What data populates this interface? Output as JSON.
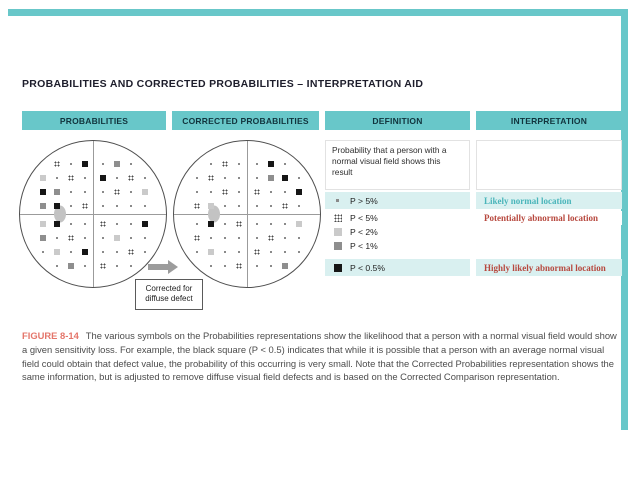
{
  "page": {
    "title": "PROBABILITIES AND CORRECTED PROBABILITIES – INTERPRETATION AID"
  },
  "colors": {
    "accent_teal": "#68c7c9",
    "row_highlight": "#d9f0f0",
    "normal_location_text": "#4ab5ba",
    "abnormal_location_text": "#b7483e",
    "figure_label": "#e4756a"
  },
  "columns": {
    "probabilities": "PROBABILITIES",
    "corrected": "CORRECTED PROBABILITIES",
    "definition": "DEFINITION",
    "interpretation": "INTERPRETATION"
  },
  "plots": {
    "corrected_note": "Corrected for diffuse defect",
    "symbol_types": {
      "dot": "P > 5%",
      "p5": "P < 5%",
      "p2": "P < 2%",
      "p1": "P < 1%",
      "p05": "P < 0.5%"
    },
    "probabilities": {
      "points": [
        [
          -37,
          -51,
          "p5"
        ],
        [
          -23,
          -51,
          "dot"
        ],
        [
          -9,
          -51,
          "p05"
        ],
        [
          9,
          -51,
          "dot"
        ],
        [
          23,
          -51,
          "p1"
        ],
        [
          37,
          -51,
          "dot"
        ],
        [
          -51,
          -37,
          "p2"
        ],
        [
          -37,
          -37,
          "dot"
        ],
        [
          -23,
          -37,
          "p5"
        ],
        [
          -9,
          -37,
          "dot"
        ],
        [
          9,
          -37,
          "p05"
        ],
        [
          23,
          -37,
          "dot"
        ],
        [
          37,
          -37,
          "p5"
        ],
        [
          51,
          -37,
          "dot"
        ],
        [
          -51,
          -23,
          "p05"
        ],
        [
          -37,
          -23,
          "p1"
        ],
        [
          -23,
          -23,
          "dot"
        ],
        [
          -9,
          -23,
          "dot"
        ],
        [
          9,
          -23,
          "dot"
        ],
        [
          23,
          -23,
          "p5"
        ],
        [
          37,
          -23,
          "dot"
        ],
        [
          51,
          -23,
          "p2"
        ],
        [
          -51,
          -9,
          "p1"
        ],
        [
          -37,
          -9,
          "p05"
        ],
        [
          -23,
          -9,
          "dot"
        ],
        [
          -9,
          -9,
          "p5"
        ],
        [
          9,
          -9,
          "dot"
        ],
        [
          23,
          -9,
          "dot"
        ],
        [
          37,
          -9,
          "dot"
        ],
        [
          51,
          -9,
          "dot"
        ],
        [
          -51,
          9,
          "p2"
        ],
        [
          -37,
          9,
          "p05"
        ],
        [
          -23,
          9,
          "dot"
        ],
        [
          -9,
          9,
          "dot"
        ],
        [
          9,
          9,
          "p5"
        ],
        [
          23,
          9,
          "dot"
        ],
        [
          37,
          9,
          "dot"
        ],
        [
          51,
          9,
          "p05"
        ],
        [
          -51,
          23,
          "p1"
        ],
        [
          -37,
          23,
          "dot"
        ],
        [
          -23,
          23,
          "p5"
        ],
        [
          -9,
          23,
          "dot"
        ],
        [
          9,
          23,
          "dot"
        ],
        [
          23,
          23,
          "p2"
        ],
        [
          37,
          23,
          "dot"
        ],
        [
          51,
          23,
          "dot"
        ],
        [
          -51,
          37,
          "dot"
        ],
        [
          -37,
          37,
          "p2"
        ],
        [
          -23,
          37,
          "dot"
        ],
        [
          -9,
          37,
          "p05"
        ],
        [
          9,
          37,
          "dot"
        ],
        [
          23,
          37,
          "dot"
        ],
        [
          37,
          37,
          "p5"
        ],
        [
          51,
          37,
          "dot"
        ],
        [
          -37,
          51,
          "dot"
        ],
        [
          -23,
          51,
          "p1"
        ],
        [
          -9,
          51,
          "dot"
        ],
        [
          9,
          51,
          "p5"
        ],
        [
          23,
          51,
          "dot"
        ],
        [
          37,
          51,
          "dot"
        ]
      ]
    },
    "corrected": {
      "points": [
        [
          -37,
          -51,
          "dot"
        ],
        [
          -23,
          -51,
          "p5"
        ],
        [
          -9,
          -51,
          "dot"
        ],
        [
          9,
          -51,
          "dot"
        ],
        [
          23,
          -51,
          "p05"
        ],
        [
          37,
          -51,
          "dot"
        ],
        [
          -51,
          -37,
          "dot"
        ],
        [
          -37,
          -37,
          "p5"
        ],
        [
          -23,
          -37,
          "dot"
        ],
        [
          -9,
          -37,
          "dot"
        ],
        [
          9,
          -37,
          "dot"
        ],
        [
          23,
          -37,
          "p1"
        ],
        [
          37,
          -37,
          "p05"
        ],
        [
          51,
          -37,
          "dot"
        ],
        [
          -51,
          -23,
          "dot"
        ],
        [
          -37,
          -23,
          "dot"
        ],
        [
          -23,
          -23,
          "p5"
        ],
        [
          -9,
          -23,
          "dot"
        ],
        [
          9,
          -23,
          "p5"
        ],
        [
          23,
          -23,
          "dot"
        ],
        [
          37,
          -23,
          "dot"
        ],
        [
          51,
          -23,
          "p05"
        ],
        [
          -51,
          -9,
          "p5"
        ],
        [
          -37,
          -9,
          "p2"
        ],
        [
          -23,
          -9,
          "dot"
        ],
        [
          -9,
          -9,
          "dot"
        ],
        [
          9,
          -9,
          "dot"
        ],
        [
          23,
          -9,
          "dot"
        ],
        [
          37,
          -9,
          "p5"
        ],
        [
          51,
          -9,
          "dot"
        ],
        [
          -51,
          9,
          "dot"
        ],
        [
          -37,
          9,
          "p05"
        ],
        [
          -23,
          9,
          "dot"
        ],
        [
          -9,
          9,
          "p5"
        ],
        [
          9,
          9,
          "dot"
        ],
        [
          23,
          9,
          "dot"
        ],
        [
          37,
          9,
          "dot"
        ],
        [
          51,
          9,
          "p2"
        ],
        [
          -51,
          23,
          "p5"
        ],
        [
          -37,
          23,
          "dot"
        ],
        [
          -23,
          23,
          "dot"
        ],
        [
          -9,
          23,
          "dot"
        ],
        [
          9,
          23,
          "dot"
        ],
        [
          23,
          23,
          "p5"
        ],
        [
          37,
          23,
          "dot"
        ],
        [
          51,
          23,
          "dot"
        ],
        [
          -51,
          37,
          "dot"
        ],
        [
          -37,
          37,
          "p2"
        ],
        [
          -23,
          37,
          "dot"
        ],
        [
          -9,
          37,
          "dot"
        ],
        [
          9,
          37,
          "p5"
        ],
        [
          23,
          37,
          "dot"
        ],
        [
          37,
          37,
          "dot"
        ],
        [
          51,
          37,
          "dot"
        ],
        [
          -37,
          51,
          "dot"
        ],
        [
          -23,
          51,
          "dot"
        ],
        [
          -9,
          51,
          "p5"
        ],
        [
          9,
          51,
          "dot"
        ],
        [
          23,
          51,
          "dot"
        ],
        [
          37,
          51,
          "p1"
        ]
      ]
    }
  },
  "definition": {
    "intro": "Probability that a person with a normal visual field shows this result",
    "legend": [
      {
        "symbol": "dot",
        "label": "P > 5%"
      },
      {
        "symbol": "p5",
        "label": "P < 5%"
      },
      {
        "symbol": "p2",
        "label": "P < 2%"
      },
      {
        "symbol": "p1",
        "label": "P < 1%"
      },
      {
        "symbol": "p05",
        "label": "P < 0.5%"
      }
    ]
  },
  "interpretation": {
    "rows": [
      {
        "label": "Likely normal location",
        "tone": "normal"
      },
      {
        "label": "Potentially abnormal location",
        "tone": "abnormal"
      },
      {
        "label": "Highly likely abnormal location",
        "tone": "abnormal"
      }
    ]
  },
  "caption": {
    "figure_label": "FIGURE 8-14",
    "text": "The various symbols on the Probabilities representations show the likelihood that a person with a normal visual field would show a given sensitivity loss. For example, the black square (P < 0.5) indicates that while it is possible that a person with an average normal visual field could obtain that defect value, the probability of this occurring is very small. Note that the Corrected Probabilities representation shows the same information, but is adjusted to remove diffuse visual field defects and is based on the Corrected Comparison representation."
  }
}
